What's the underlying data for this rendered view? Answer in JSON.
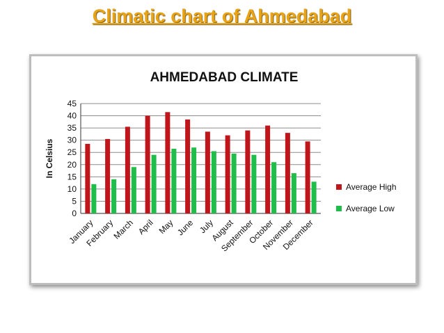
{
  "slide": {
    "title": "Climatic chart of Ahmedabad"
  },
  "chart_data": {
    "type": "bar",
    "title": "AHMEDABAD CLIMATE",
    "xlabel": "",
    "ylabel": "In Celsius",
    "ylim": [
      0,
      45
    ],
    "yticks": [
      "0",
      "5",
      "10",
      "15",
      "20",
      "25",
      "30",
      "35",
      "40",
      "45"
    ],
    "grid": true,
    "legend_position": "right",
    "categories": [
      "January",
      "February",
      "March",
      "April",
      "May",
      "June",
      "July",
      "August",
      "September",
      "October",
      "November",
      "December"
    ],
    "series": [
      {
        "name": "Average High",
        "color": "#c0151a",
        "values": [
          28.5,
          30.5,
          35.5,
          40,
          41.5,
          38.5,
          33.5,
          32,
          34,
          36,
          33,
          29.5
        ]
      },
      {
        "name": "Average Low",
        "color": "#1fbd4a",
        "values": [
          12,
          14,
          19,
          24,
          26.5,
          27,
          25.5,
          24.5,
          24,
          21,
          16.5,
          13
        ]
      }
    ]
  }
}
